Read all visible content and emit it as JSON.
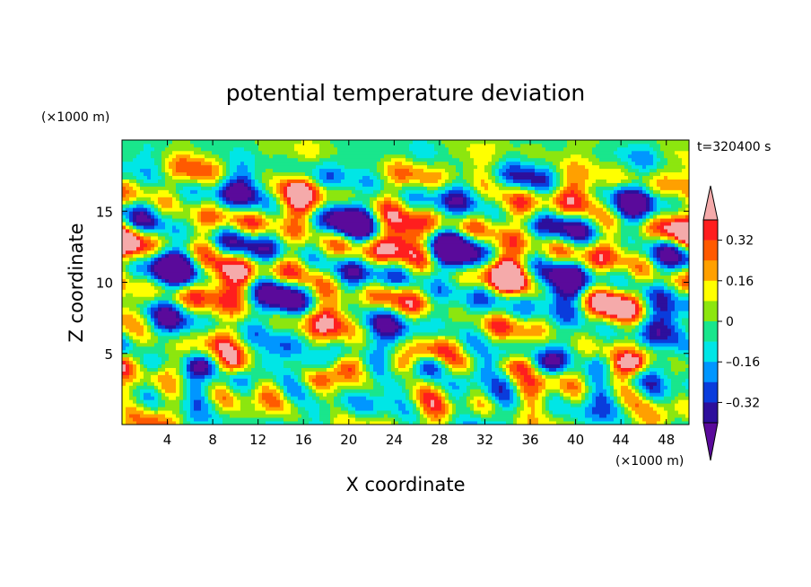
{
  "chart_data": {
    "type": "heatmap",
    "title": "potential temperature deviation",
    "xlabel": "X coordinate",
    "ylabel": "Z coordinate",
    "x_unit": "(×1000 m)",
    "z_unit": "(×1000 m)",
    "time_label": "t=320400 s",
    "xlim": [
      0,
      50
    ],
    "ylim": [
      0,
      20
    ],
    "x_ticks": [
      4,
      8,
      12,
      16,
      20,
      24,
      28,
      32,
      36,
      40,
      44,
      48
    ],
    "x_tick_labels": [
      "4",
      "8",
      "12",
      "16",
      "20",
      "24",
      "28",
      "32",
      "36",
      "40",
      "44",
      "48"
    ],
    "y_ticks": [
      5,
      10,
      15
    ],
    "y_tick_labels": [
      "5",
      "10",
      "15"
    ],
    "colorbar": {
      "levels": [
        -0.4,
        -0.32,
        -0.24,
        -0.16,
        -0.08,
        0,
        0.08,
        0.16,
        0.24,
        0.32,
        0.4
      ],
      "tick_labels": [
        "0.32",
        "0.16",
        "0",
        "–0.16",
        "–0.32"
      ],
      "tick_values": [
        0.32,
        0.16,
        0,
        -0.16,
        -0.32
      ],
      "colors": [
        "#5a0a9b",
        "#2d0f9c",
        "#0a3cdc",
        "#0096ff",
        "#00e6e6",
        "#19e68c",
        "#8ce60f",
        "#ffff00",
        "#ffa000",
        "#ff5a00",
        "#ff1e1e",
        "#f5aaaa"
      ],
      "extend": "both"
    },
    "grid": false
  }
}
